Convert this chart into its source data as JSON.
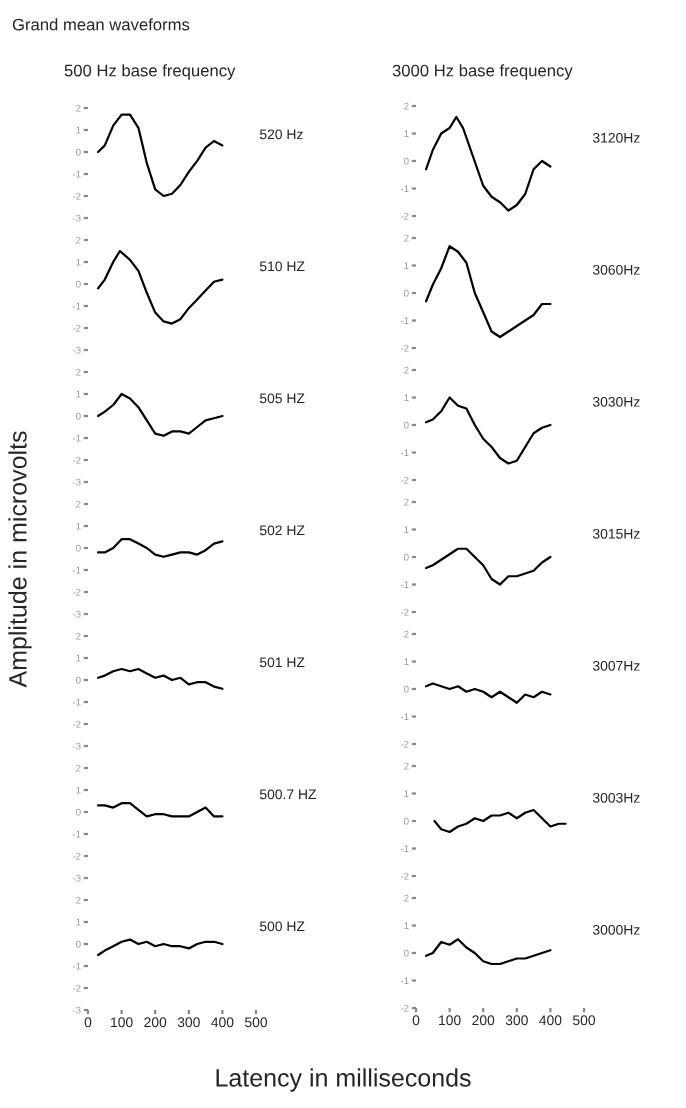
{
  "chart_data": [
    {
      "type": "line",
      "title": "500 Hz base frequency",
      "annotations": [
        "Grand mean waveforms",
        "520 Hz"
      ],
      "ylim": [
        -3,
        2
      ],
      "yticks": [
        -3,
        -2,
        -1,
        0,
        1,
        2
      ],
      "xlim": [
        0,
        500
      ],
      "tick_labels": "y",
      "color": "#000000",
      "x": [
        30,
        50,
        75,
        100,
        125,
        150,
        175,
        200,
        225,
        250,
        275,
        300,
        325,
        350,
        375,
        400
      ],
      "values": [
        0.0,
        0.3,
        1.2,
        1.7,
        1.7,
        1.1,
        -0.5,
        -1.7,
        -2.0,
        -1.9,
        -1.5,
        -0.9,
        -0.4,
        0.2,
        0.5,
        0.3
      ]
    },
    {
      "type": "line",
      "annotations": [
        "510 HZ"
      ],
      "ylim": [
        -3,
        2
      ],
      "yticks": [
        -3,
        -2,
        -1,
        0,
        1,
        2
      ],
      "xlim": [
        0,
        500
      ],
      "tick_labels": "y",
      "color": "#000000",
      "x": [
        30,
        50,
        75,
        95,
        125,
        150,
        175,
        200,
        225,
        250,
        275,
        300,
        325,
        350,
        375,
        400
      ],
      "values": [
        -0.2,
        0.2,
        1.0,
        1.5,
        1.1,
        0.6,
        -0.4,
        -1.3,
        -1.7,
        -1.8,
        -1.6,
        -1.1,
        -0.7,
        -0.3,
        0.1,
        0.2
      ]
    },
    {
      "type": "line",
      "annotations": [
        "505 HZ"
      ],
      "ylim": [
        -3,
        2
      ],
      "yticks": [
        -3,
        -2,
        -1,
        0,
        1,
        2
      ],
      "xlim": [
        0,
        500
      ],
      "tick_labels": "y",
      "color": "#000000",
      "x": [
        30,
        50,
        75,
        100,
        125,
        150,
        175,
        200,
        225,
        250,
        275,
        300,
        325,
        350,
        375,
        400
      ],
      "values": [
        0.0,
        0.2,
        0.5,
        1.0,
        0.8,
        0.4,
        -0.2,
        -0.8,
        -0.9,
        -0.7,
        -0.7,
        -0.8,
        -0.5,
        -0.2,
        -0.1,
        0.0
      ]
    },
    {
      "type": "line",
      "annotations": [
        "502 HZ"
      ],
      "ylabel": "Amplitude in microvolts",
      "ylim": [
        -3,
        2
      ],
      "yticks": [
        -3,
        -2,
        -1,
        0,
        1,
        2
      ],
      "xlim": [
        0,
        500
      ],
      "tick_labels": "y",
      "color": "#000000",
      "x": [
        30,
        50,
        75,
        100,
        125,
        150,
        175,
        200,
        225,
        250,
        275,
        300,
        325,
        350,
        375,
        400
      ],
      "values": [
        -0.2,
        -0.2,
        0.0,
        0.4,
        0.4,
        0.2,
        0.0,
        -0.3,
        -0.4,
        -0.3,
        -0.2,
        -0.2,
        -0.3,
        -0.1,
        0.2,
        0.3
      ]
    },
    {
      "type": "line",
      "annotations": [
        "501 HZ"
      ],
      "ylim": [
        -3,
        2
      ],
      "yticks": [
        -3,
        -2,
        -1,
        0,
        1,
        2
      ],
      "xlim": [
        0,
        500
      ],
      "tick_labels": "y",
      "color": "#000000",
      "x": [
        30,
        50,
        75,
        100,
        125,
        150,
        175,
        200,
        225,
        250,
        275,
        300,
        325,
        350,
        375,
        400
      ],
      "values": [
        0.1,
        0.2,
        0.4,
        0.5,
        0.4,
        0.5,
        0.3,
        0.1,
        0.2,
        0.0,
        0.1,
        -0.2,
        -0.1,
        -0.1,
        -0.3,
        -0.4
      ]
    },
    {
      "type": "line",
      "annotations": [
        "500.7 HZ"
      ],
      "ylim": [
        -3,
        2
      ],
      "yticks": [
        -3,
        -2,
        -1,
        0,
        1,
        2
      ],
      "xlim": [
        0,
        500
      ],
      "tick_labels": "y",
      "color": "#000000",
      "x": [
        30,
        50,
        75,
        100,
        125,
        150,
        175,
        200,
        225,
        250,
        275,
        300,
        325,
        350,
        375,
        400
      ],
      "values": [
        0.3,
        0.3,
        0.2,
        0.4,
        0.4,
        0.1,
        -0.2,
        -0.1,
        -0.1,
        -0.2,
        -0.2,
        -0.2,
        0.0,
        0.2,
        -0.2,
        -0.2
      ]
    },
    {
      "type": "line",
      "annotations": [
        "500 HZ"
      ],
      "xlabel": "Latency in milliseconds",
      "ylim": [
        -3,
        2
      ],
      "yticks": [
        -3,
        -2,
        -1,
        0,
        1,
        2
      ],
      "xlim": [
        0,
        500
      ],
      "xticks": [
        0,
        100,
        200,
        300,
        400,
        500
      ],
      "color": "#000000",
      "x": [
        30,
        50,
        75,
        100,
        125,
        150,
        175,
        200,
        225,
        250,
        275,
        300,
        325,
        350,
        375,
        400
      ],
      "values": [
        -0.5,
        -0.3,
        -0.1,
        0.1,
        0.2,
        0.0,
        0.1,
        -0.1,
        0.0,
        -0.1,
        -0.1,
        -0.2,
        0.0,
        0.1,
        0.1,
        0.0
      ]
    },
    {
      "type": "line",
      "title": "3000 Hz base frequency",
      "annotations": [
        "3120Hz"
      ],
      "ylim": [
        -2,
        2
      ],
      "yticks": [
        -2,
        -1,
        0,
        1,
        2
      ],
      "xlim": [
        0,
        500
      ],
      "tick_labels": "y",
      "color": "#000000",
      "x": [
        30,
        50,
        75,
        100,
        120,
        140,
        160,
        180,
        200,
        225,
        250,
        275,
        300,
        325,
        350,
        375,
        400
      ],
      "values": [
        -0.3,
        0.4,
        1.0,
        1.2,
        1.6,
        1.2,
        0.5,
        -0.2,
        -0.9,
        -1.3,
        -1.5,
        -1.8,
        -1.6,
        -1.2,
        -0.3,
        0.0,
        -0.2
      ]
    },
    {
      "type": "line",
      "annotations": [
        "3060Hz"
      ],
      "ylim": [
        -2,
        2
      ],
      "yticks": [
        -2,
        -1,
        0,
        1,
        2
      ],
      "xlim": [
        0,
        500
      ],
      "tick_labels": "y",
      "color": "#000000",
      "x": [
        30,
        50,
        75,
        100,
        125,
        150,
        175,
        200,
        225,
        250,
        275,
        300,
        325,
        350,
        375,
        400
      ],
      "values": [
        -0.3,
        0.3,
        0.9,
        1.7,
        1.5,
        1.1,
        0.0,
        -0.7,
        -1.4,
        -1.6,
        -1.4,
        -1.2,
        -1.0,
        -0.8,
        -0.4,
        -0.4
      ]
    },
    {
      "type": "line",
      "annotations": [
        "3030Hz"
      ],
      "ylim": [
        -2,
        2
      ],
      "yticks": [
        -2,
        -1,
        0,
        1,
        2
      ],
      "xlim": [
        0,
        500
      ],
      "tick_labels": "y",
      "color": "#000000",
      "x": [
        30,
        50,
        75,
        100,
        125,
        150,
        175,
        200,
        225,
        250,
        275,
        300,
        325,
        350,
        375,
        400
      ],
      "values": [
        0.1,
        0.2,
        0.5,
        1.0,
        0.7,
        0.6,
        0.0,
        -0.5,
        -0.8,
        -1.2,
        -1.4,
        -1.3,
        -0.8,
        -0.3,
        -0.1,
        0.0
      ]
    },
    {
      "type": "line",
      "annotations": [
        "3015Hz"
      ],
      "ylim": [
        -2,
        2
      ],
      "yticks": [
        -2,
        -1,
        0,
        1,
        2
      ],
      "xlim": [
        0,
        500
      ],
      "tick_labels": "y",
      "color": "#000000",
      "x": [
        30,
        50,
        75,
        100,
        125,
        150,
        175,
        200,
        225,
        250,
        275,
        300,
        325,
        350,
        375,
        400
      ],
      "values": [
        -0.4,
        -0.3,
        -0.1,
        0.1,
        0.3,
        0.3,
        0.0,
        -0.3,
        -0.8,
        -1.0,
        -0.7,
        -0.7,
        -0.6,
        -0.5,
        -0.2,
        0.0
      ]
    },
    {
      "type": "line",
      "annotations": [
        "3007Hz"
      ],
      "ylim": [
        -2,
        2
      ],
      "yticks": [
        -2,
        -1,
        0,
        1,
        2
      ],
      "xlim": [
        0,
        500
      ],
      "tick_labels": "y",
      "color": "#000000",
      "x": [
        30,
        50,
        75,
        100,
        125,
        150,
        175,
        200,
        225,
        250,
        275,
        300,
        325,
        350,
        375,
        400
      ],
      "values": [
        0.1,
        0.2,
        0.1,
        0.0,
        0.1,
        -0.1,
        0.0,
        -0.1,
        -0.3,
        -0.1,
        -0.3,
        -0.5,
        -0.2,
        -0.3,
        -0.1,
        -0.2
      ]
    },
    {
      "type": "line",
      "annotations": [
        "3003Hz"
      ],
      "ylim": [
        -2,
        2
      ],
      "yticks": [
        -2,
        -1,
        0,
        1,
        2
      ],
      "xlim": [
        0,
        500
      ],
      "tick_labels": "y",
      "color": "#000000",
      "x": [
        55,
        75,
        100,
        125,
        150,
        175,
        200,
        225,
        250,
        275,
        300,
        325,
        350,
        375,
        400,
        425,
        445
      ],
      "values": [
        0.0,
        -0.3,
        -0.4,
        -0.2,
        -0.1,
        0.1,
        0.0,
        0.2,
        0.2,
        0.3,
        0.1,
        0.3,
        0.4,
        0.1,
        -0.2,
        -0.1,
        -0.1
      ]
    },
    {
      "type": "line",
      "annotations": [
        "3000Hz"
      ],
      "ylim": [
        -2,
        2
      ],
      "yticks": [
        -2,
        -1,
        0,
        1,
        2
      ],
      "xlim": [
        0,
        500
      ],
      "xticks": [
        0,
        100,
        200,
        300,
        400,
        500
      ],
      "color": "#000000",
      "x": [
        30,
        50,
        75,
        100,
        125,
        150,
        175,
        200,
        225,
        250,
        275,
        300,
        325,
        350,
        375,
        400
      ],
      "values": [
        -0.1,
        0.0,
        0.4,
        0.3,
        0.5,
        0.2,
        0.0,
        -0.3,
        -0.4,
        -0.4,
        -0.3,
        -0.2,
        -0.2,
        -0.1,
        0.0,
        0.1
      ]
    }
  ]
}
